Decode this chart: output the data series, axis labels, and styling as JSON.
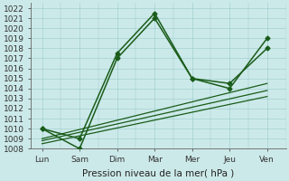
{
  "x_labels": [
    "Lun",
    "Sam",
    "Dim",
    "Mar",
    "Mer",
    "Jeu",
    "Ven"
  ],
  "x_ticks": [
    0,
    1,
    2,
    3,
    4,
    5,
    6
  ],
  "ylim": [
    1008,
    1022.5
  ],
  "yticks": [
    1008,
    1009,
    1010,
    1011,
    1012,
    1013,
    1014,
    1015,
    1016,
    1017,
    1018,
    1019,
    1020,
    1021,
    1022
  ],
  "line1": {
    "x": [
      0,
      1,
      2,
      3,
      4,
      5,
      6
    ],
    "y": [
      1010.0,
      1009.0,
      1017.5,
      1021.5,
      1015.0,
      1014.0,
      1019.0
    ],
    "color": "#1a5c1a",
    "marker": "D",
    "markersize": 2.5,
    "linewidth": 1.1
  },
  "line2": {
    "x": [
      0,
      1,
      2,
      3,
      4,
      5,
      6
    ],
    "y": [
      1010.0,
      1008.0,
      1017.0,
      1021.0,
      1015.0,
      1014.5,
      1018.0
    ],
    "color": "#1a5c1a",
    "marker": "D",
    "markersize": 2.5,
    "linewidth": 1.1
  },
  "line3_x": [
    0,
    6
  ],
  "line3_y": [
    1009.0,
    1014.5
  ],
  "line4_x": [
    0,
    6
  ],
  "line4_y": [
    1008.8,
    1013.8
  ],
  "line5_x": [
    0,
    6
  ],
  "line5_y": [
    1008.5,
    1013.2
  ],
  "line_color": "#1a5c1a",
  "bg_color": "#cce9e9",
  "grid_color": "#99cccc",
  "xlabel": "Pression niveau de la mer( hPa )",
  "xlabel_fontsize": 7.5,
  "tick_fontsize": 6.5
}
